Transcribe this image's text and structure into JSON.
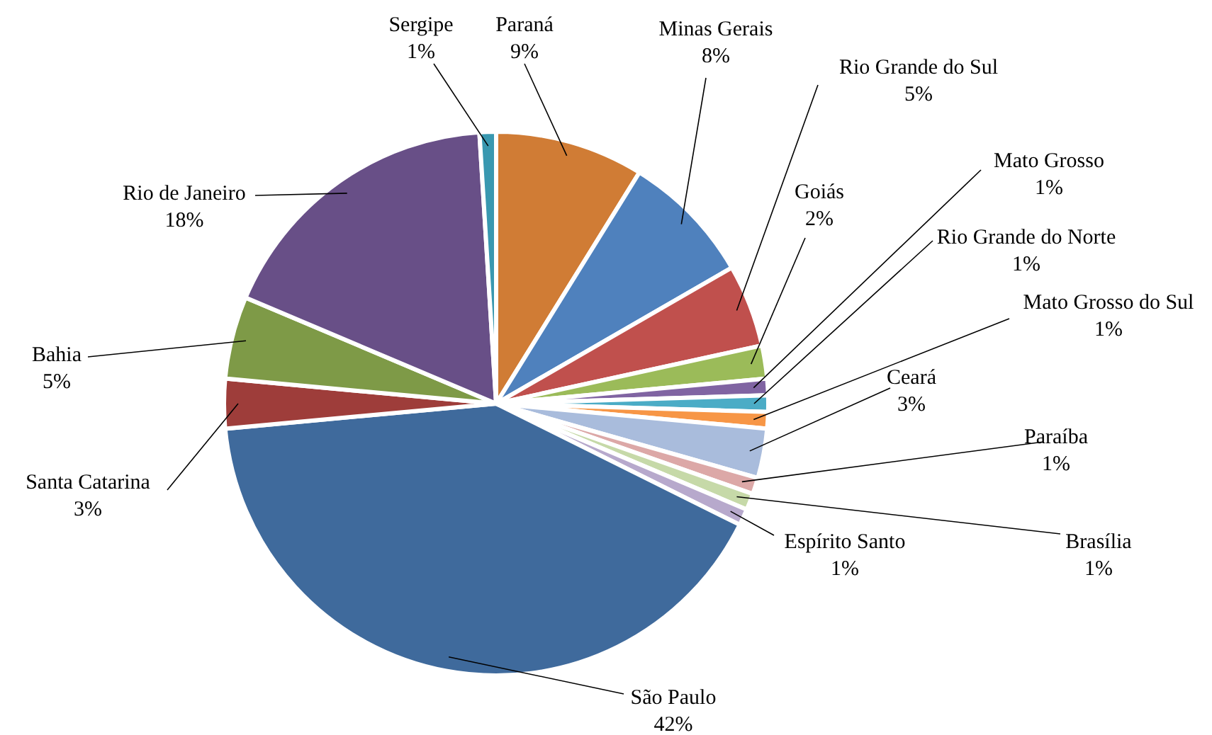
{
  "chart_data": {
    "type": "pie",
    "categories": [
      "Paraná",
      "Minas Gerais",
      "Rio Grande do Sul",
      "Goiás",
      "Mato Grosso",
      "Rio Grande do Norte",
      "Mato Grosso do Sul",
      "Ceará",
      "Paraíba",
      "Brasília",
      "Espírito Santo",
      "São Paulo",
      "Santa Catarina",
      "Bahia",
      "Rio de Janeiro",
      "Sergipe"
    ],
    "values": [
      9,
      8,
      5,
      2,
      1,
      1,
      1,
      3,
      1,
      1,
      1,
      42,
      3,
      5,
      18,
      1
    ],
    "value_labels": [
      "9%",
      "8%",
      "5%",
      "2%",
      "1%",
      "1%",
      "1%",
      "3%",
      "1%",
      "1%",
      "1%",
      "42%",
      "3%",
      "5%",
      "18%",
      "1%"
    ],
    "colors": [
      "#d07c35",
      "#4f81bd",
      "#c0504d",
      "#9bbb59",
      "#8064a2",
      "#4bacc6",
      "#f79646",
      "#a9bcdc",
      "#dca8a7",
      "#c6d9a8",
      "#b7a9cc",
      "#3f6a9c",
      "#9e3d3a",
      "#7e9a47",
      "#684f87",
      "#3998b0"
    ]
  }
}
